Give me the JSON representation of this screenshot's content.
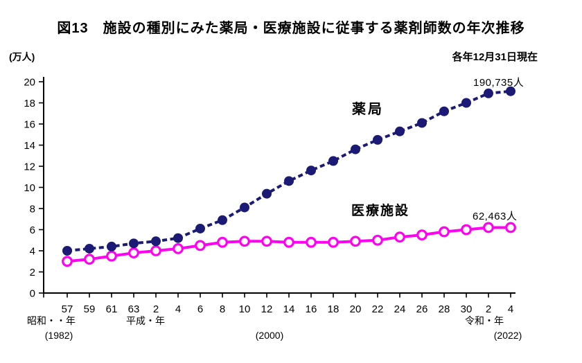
{
  "figure": {
    "unit_label": "(万人)",
    "as_of_note": "各年12月31日現在"
  },
  "chart_data": {
    "type": "line",
    "title": "図13　施設の種別にみた薬局・医療施設に従事する薬剤師数の年次推移",
    "y_axis": {
      "unit": "万人",
      "range": [
        0,
        20
      ],
      "ticks": [
        0,
        2,
        4,
        6,
        8,
        10,
        12,
        14,
        16,
        18,
        20
      ]
    },
    "x_axis": {
      "tick_labels": [
        "57",
        "59",
        "61",
        "63",
        "2",
        "4",
        "6",
        "8",
        "10",
        "12",
        "14",
        "16",
        "18",
        "20",
        "22",
        "24",
        "26",
        "28",
        "30",
        "2",
        "4"
      ],
      "era_annotations": [
        {
          "text": "昭和・・年",
          "index": 0,
          "dx": -23,
          "row": 1
        },
        {
          "text": "(1982)",
          "index": 0,
          "dx": -12,
          "row": 2
        },
        {
          "text": "平成・年",
          "index": 3,
          "dx": 17,
          "row": 1
        },
        {
          "text": "(2000)",
          "index": 9,
          "dx": 4,
          "row": 2
        },
        {
          "text": "令和・年",
          "index": 19,
          "dx": -6,
          "row": 1
        },
        {
          "text": "(2022)",
          "index": 20,
          "dx": -4,
          "row": 2
        }
      ]
    },
    "grid": false,
    "legend": "inline-labels",
    "series": [
      {
        "id": "pharmacy",
        "name": "薬局",
        "color": "#1b1b75",
        "line_style": "dashed",
        "marker": "filled-circle",
        "end_label": "190,735人",
        "values": [
          4.0,
          4.2,
          4.4,
          4.7,
          4.9,
          5.2,
          6.1,
          6.9,
          8.1,
          9.4,
          10.6,
          11.6,
          12.5,
          13.6,
          14.5,
          15.3,
          16.1,
          17.2,
          18.0,
          18.9,
          19.1
        ]
      },
      {
        "id": "medical-facilities",
        "name": "医療施設",
        "color": "#ff00f0",
        "line_style": "solid",
        "marker": "open-circle",
        "end_label": "62,463人",
        "values": [
          3.0,
          3.2,
          3.5,
          3.8,
          4.0,
          4.2,
          4.5,
          4.8,
          4.9,
          4.9,
          4.8,
          4.8,
          4.8,
          4.9,
          5.0,
          5.3,
          5.5,
          5.8,
          6.0,
          6.2,
          6.2
        ]
      }
    ]
  }
}
